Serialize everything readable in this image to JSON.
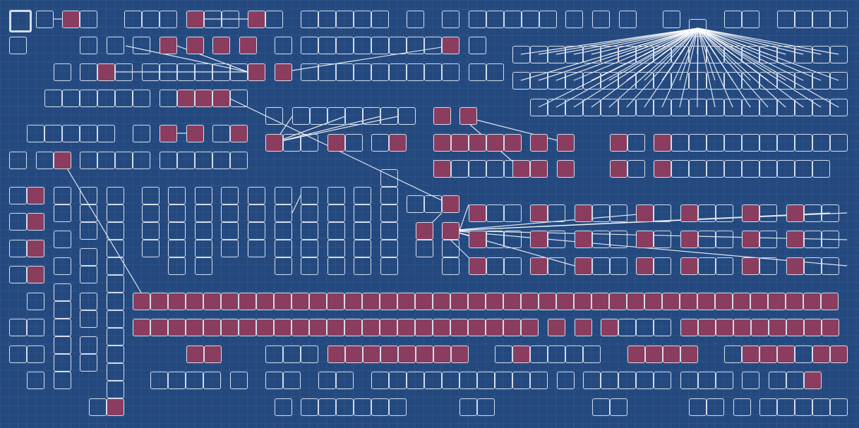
{
  "colors": {
    "background": "#24497f",
    "cell_border": "#d3dcec",
    "filled_cell": "#8a3d5e",
    "edge": "#ffffff"
  }
}
